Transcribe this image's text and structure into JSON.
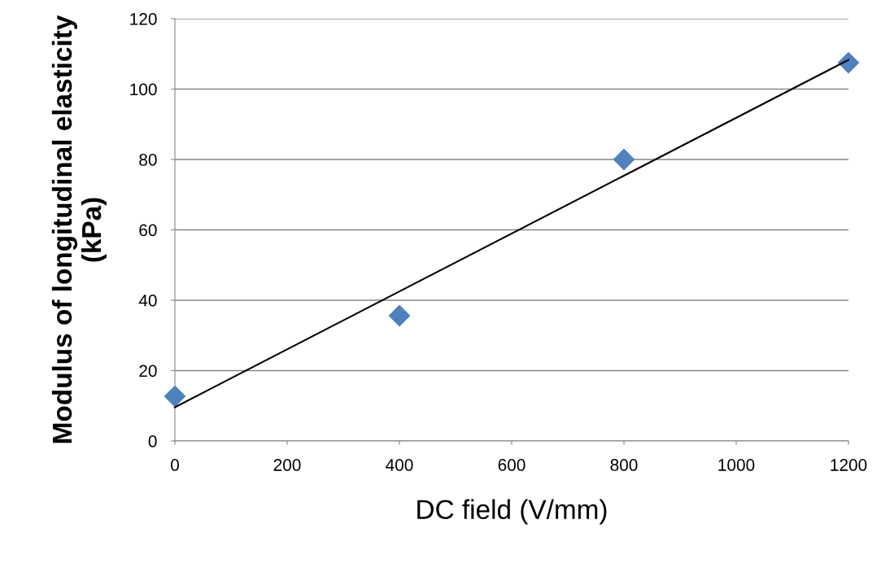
{
  "chart_data": {
    "type": "scatter",
    "xlabel": "DC field (V/mm)",
    "ylabel": "Modulus of longitudinal elasticity (kPa)",
    "xlim": [
      0,
      1200
    ],
    "xticks": [
      0,
      200,
      400,
      600,
      800,
      1000,
      1200
    ],
    "ylim": [
      0,
      120
    ],
    "yticks": [
      0,
      20,
      40,
      60,
      80,
      100,
      120
    ],
    "grid": "y",
    "legend": false,
    "series": [
      {
        "color": "#4f81bd",
        "marker": "diamond",
        "x": [
          0,
          400,
          800,
          1200
        ],
        "values": [
          12.7,
          35.6,
          80.0,
          107.5
        ]
      },
      {
        "type": "line",
        "color": "#000000",
        "marker": "none",
        "line_style": "solid",
        "x": [
          0,
          1200
        ],
        "values": [
          9.6,
          108.3
        ]
      }
    ]
  }
}
